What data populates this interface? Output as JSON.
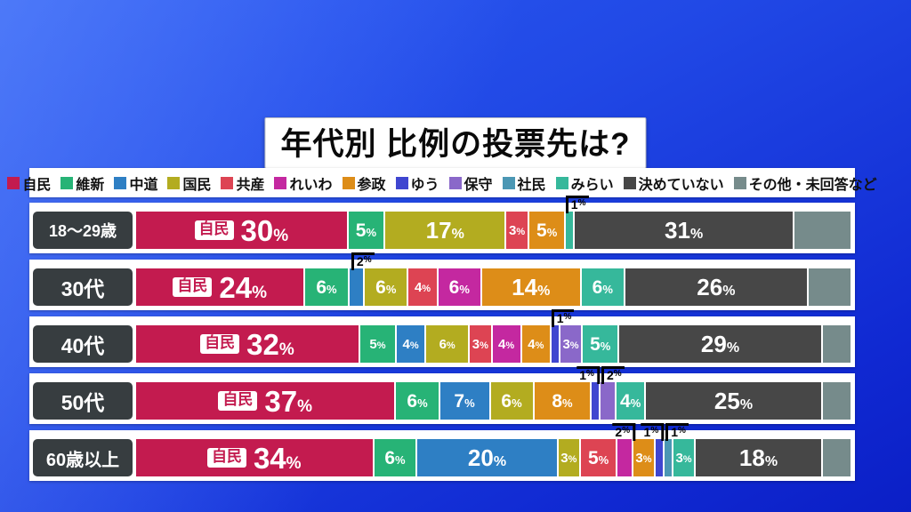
{
  "chart_data": {
    "type": "bar",
    "variant": "horizontal-stacked",
    "unit": "%",
    "title": "年代別 比例の投票先は?",
    "legend_position": "top",
    "x_range": [
      0,
      100
    ],
    "grid": false,
    "parties": [
      {
        "name": "自民",
        "color": "#c31b4f"
      },
      {
        "name": "維新",
        "color": "#27b376"
      },
      {
        "name": "中道",
        "color": "#2e7fc4"
      },
      {
        "name": "国民",
        "color": "#b3ac20"
      },
      {
        "name": "共産",
        "color": "#dd4453"
      },
      {
        "name": "れいわ",
        "color": "#c428a0"
      },
      {
        "name": "参政",
        "color": "#dd8d18"
      },
      {
        "name": "ゆう",
        "color": "#3f46d0"
      },
      {
        "name": "保守",
        "color": "#8a68c9"
      },
      {
        "name": "社民",
        "color": "#4b97b4"
      },
      {
        "name": "みらい",
        "color": "#36b89b"
      },
      {
        "name": "決めていない",
        "color": "#474747"
      },
      {
        "name": "その他・未回答など",
        "color": "#768b8b"
      }
    ],
    "rows": [
      {
        "category": "18〜29歳",
        "segments": [
          {
            "party": "自民",
            "value": 30,
            "name_tag": true,
            "label_num": "30",
            "label_size": "big"
          },
          {
            "party": "維新",
            "value": 5,
            "label_num": "5",
            "label_size": "mid"
          },
          {
            "party": "国民",
            "value": 17,
            "label_num": "17",
            "label_size": "large"
          },
          {
            "party": "共産",
            "value": 3,
            "label_num": "3",
            "label_size": "small"
          },
          {
            "party": "参政",
            "value": 5,
            "label_num": "5",
            "label_size": "mid"
          },
          {
            "party": "みらい",
            "value": 1,
            "callout": {
              "num": "1",
              "dir": "left"
            }
          },
          {
            "party": "決めていない",
            "value": 31,
            "label_num": "31",
            "label_size": "large"
          },
          {
            "party": "その他・未回答など",
            "value": 8
          }
        ]
      },
      {
        "category": "30代",
        "segments": [
          {
            "party": "自民",
            "value": 24,
            "name_tag": true,
            "label_num": "24",
            "label_size": "big"
          },
          {
            "party": "維新",
            "value": 6,
            "label_num": "6",
            "label_size": "mid"
          },
          {
            "party": "中道",
            "value": 2,
            "callout": {
              "num": "2",
              "dir": "left"
            }
          },
          {
            "party": "国民",
            "value": 6,
            "label_num": "6",
            "label_size": "mid"
          },
          {
            "party": "共産",
            "value": 4,
            "label_num": "4",
            "label_size": "small"
          },
          {
            "party": "れいわ",
            "value": 6,
            "label_num": "6",
            "label_size": "mid"
          },
          {
            "party": "参政",
            "value": 14,
            "label_num": "14",
            "label_size": "large"
          },
          {
            "party": "みらい",
            "value": 6,
            "label_num": "6",
            "label_size": "mid"
          },
          {
            "party": "決めていない",
            "value": 26,
            "label_num": "26",
            "label_size": "large"
          },
          {
            "party": "その他・未回答など",
            "value": 6
          }
        ]
      },
      {
        "category": "40代",
        "segments": [
          {
            "party": "自民",
            "value": 32,
            "name_tag": true,
            "label_num": "32",
            "label_size": "big"
          },
          {
            "party": "維新",
            "value": 5,
            "label_num": "5",
            "label_size": "small"
          },
          {
            "party": "中道",
            "value": 4,
            "label_num": "4",
            "label_size": "small"
          },
          {
            "party": "国民",
            "value": 6,
            "label_num": "6",
            "label_size": "small"
          },
          {
            "party": "共産",
            "value": 3,
            "label_num": "3",
            "label_size": "small"
          },
          {
            "party": "れいわ",
            "value": 4,
            "label_num": "4",
            "label_size": "small"
          },
          {
            "party": "参政",
            "value": 4,
            "label_num": "4",
            "label_size": "small"
          },
          {
            "party": "ゆう",
            "value": 1,
            "callout": {
              "num": "1",
              "dir": "left"
            }
          },
          {
            "party": "保守",
            "value": 3,
            "label_num": "3",
            "label_size": "small"
          },
          {
            "party": "みらい",
            "value": 5,
            "label_num": "5",
            "label_size": "mid"
          },
          {
            "party": "決めていない",
            "value": 29,
            "label_num": "29",
            "label_size": "large"
          },
          {
            "party": "その他・未回答など",
            "value": 4
          }
        ]
      },
      {
        "category": "50代",
        "segments": [
          {
            "party": "自民",
            "value": 37,
            "name_tag": true,
            "label_num": "37",
            "label_size": "big"
          },
          {
            "party": "維新",
            "value": 6,
            "label_num": "6",
            "label_size": "mid"
          },
          {
            "party": "中道",
            "value": 7,
            "label_num": "7",
            "label_size": "mid"
          },
          {
            "party": "国民",
            "value": 6,
            "label_num": "6",
            "label_size": "mid"
          },
          {
            "party": "参政",
            "value": 8,
            "label_num": "8",
            "label_size": "mid"
          },
          {
            "party": "ゆう",
            "value": 1,
            "callout": {
              "num": "1",
              "dir": "right"
            }
          },
          {
            "party": "保守",
            "value": 2,
            "callout": {
              "num": "2",
              "dir": "left"
            }
          },
          {
            "party": "みらい",
            "value": 4,
            "label_num": "4",
            "label_size": "mid"
          },
          {
            "party": "決めていない",
            "value": 25,
            "label_num": "25",
            "label_size": "large"
          },
          {
            "party": "その他・未回答など",
            "value": 4
          }
        ]
      },
      {
        "category": "60歳以上",
        "segments": [
          {
            "party": "自民",
            "value": 34,
            "name_tag": true,
            "label_num": "34",
            "label_size": "big"
          },
          {
            "party": "維新",
            "value": 6,
            "label_num": "6",
            "label_size": "mid"
          },
          {
            "party": "中道",
            "value": 20,
            "label_num": "20",
            "label_size": "large"
          },
          {
            "party": "国民",
            "value": 3,
            "label_num": "3",
            "label_size": "small"
          },
          {
            "party": "共産",
            "value": 5,
            "label_num": "5",
            "label_size": "mid"
          },
          {
            "party": "れいわ",
            "value": 2,
            "callout": {
              "num": "2",
              "dir": "right"
            }
          },
          {
            "party": "参政",
            "value": 3,
            "label_num": "3",
            "label_size": "small"
          },
          {
            "party": "ゆう",
            "value": 1,
            "callout": {
              "num": "1",
              "dir": "right"
            }
          },
          {
            "party": "社民",
            "value": 1,
            "callout": {
              "num": "1",
              "dir": "left"
            }
          },
          {
            "party": "みらい",
            "value": 3,
            "label_num": "3",
            "label_size": "small"
          },
          {
            "party": "決めていない",
            "value": 18,
            "label_num": "18",
            "label_size": "large"
          },
          {
            "party": "その他・未回答など",
            "value": 4
          }
        ]
      }
    ]
  }
}
